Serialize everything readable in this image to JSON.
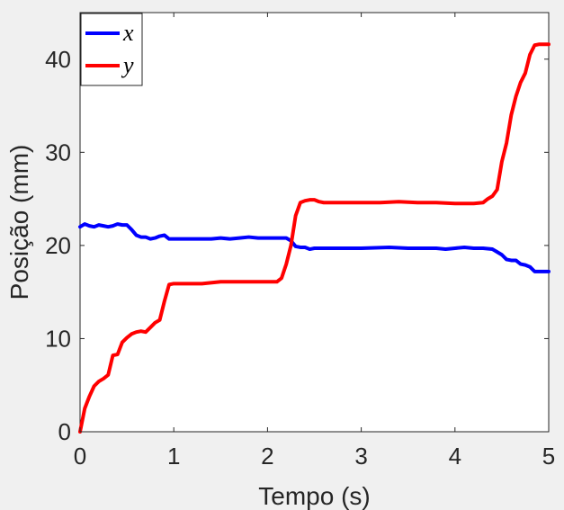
{
  "chart_data": {
    "type": "line",
    "title": "",
    "xlabel": "Tempo (s)",
    "ylabel": "Posição (mm)",
    "xlim": [
      0,
      5
    ],
    "ylim": [
      0,
      45
    ],
    "xticks": [
      "0",
      "1",
      "2",
      "3",
      "4",
      "5"
    ],
    "yticks": [
      "0",
      "10",
      "20",
      "30",
      "40"
    ],
    "grid": false,
    "legend_position": "top-left",
    "series": [
      {
        "name": "x",
        "color": "#0000ff",
        "x": [
          0,
          0.05,
          0.1,
          0.15,
          0.2,
          0.25,
          0.3,
          0.35,
          0.4,
          0.45,
          0.5,
          0.55,
          0.6,
          0.65,
          0.7,
          0.75,
          0.8,
          0.85,
          0.9,
          0.95,
          1.0,
          1.1,
          1.2,
          1.3,
          1.4,
          1.5,
          1.6,
          1.7,
          1.8,
          1.9,
          2.0,
          2.1,
          2.2,
          2.25,
          2.3,
          2.35,
          2.4,
          2.45,
          2.5,
          2.6,
          2.8,
          3.0,
          3.3,
          3.5,
          3.8,
          3.9,
          4.0,
          4.1,
          4.2,
          4.3,
          4.4,
          4.45,
          4.5,
          4.55,
          4.6,
          4.65,
          4.7,
          4.75,
          4.8,
          4.85,
          4.9,
          5.0
        ],
        "y": [
          22.0,
          22.3,
          22.1,
          22.0,
          22.2,
          22.1,
          22.0,
          22.1,
          22.3,
          22.2,
          22.2,
          21.7,
          21.1,
          20.9,
          20.9,
          20.7,
          20.8,
          21.0,
          21.1,
          20.7,
          20.7,
          20.7,
          20.7,
          20.7,
          20.7,
          20.8,
          20.7,
          20.8,
          20.9,
          20.8,
          20.8,
          20.8,
          20.8,
          20.5,
          19.9,
          19.8,
          19.8,
          19.6,
          19.7,
          19.7,
          19.7,
          19.7,
          19.8,
          19.7,
          19.7,
          19.6,
          19.7,
          19.8,
          19.7,
          19.7,
          19.6,
          19.3,
          19.0,
          18.5,
          18.4,
          18.4,
          18.0,
          17.9,
          17.7,
          17.2,
          17.2,
          17.2
        ]
      },
      {
        "name": "y",
        "color": "#ff0000",
        "x": [
          0,
          0.05,
          0.1,
          0.15,
          0.2,
          0.25,
          0.3,
          0.35,
          0.4,
          0.45,
          0.5,
          0.55,
          0.6,
          0.65,
          0.7,
          0.75,
          0.8,
          0.85,
          0.9,
          0.95,
          1.0,
          1.1,
          1.3,
          1.5,
          1.7,
          1.9,
          2.1,
          2.15,
          2.2,
          2.25,
          2.3,
          2.35,
          2.4,
          2.45,
          2.5,
          2.55,
          2.6,
          2.8,
          3.0,
          3.2,
          3.4,
          3.6,
          3.8,
          4.0,
          4.1,
          4.2,
          4.3,
          4.35,
          4.4,
          4.45,
          4.5,
          4.55,
          4.6,
          4.65,
          4.7,
          4.75,
          4.8,
          4.85,
          4.9,
          4.95,
          5.0
        ],
        "y": [
          0,
          2.5,
          3.8,
          4.9,
          5.4,
          5.7,
          6.1,
          8.2,
          8.3,
          9.6,
          10.1,
          10.5,
          10.7,
          10.8,
          10.7,
          11.2,
          11.7,
          12.0,
          14.0,
          15.8,
          15.9,
          15.9,
          15.9,
          16.1,
          16.1,
          16.1,
          16.1,
          16.5,
          18.0,
          20.0,
          23.2,
          24.6,
          24.8,
          24.9,
          24.9,
          24.7,
          24.6,
          24.6,
          24.6,
          24.6,
          24.7,
          24.6,
          24.6,
          24.5,
          24.5,
          24.5,
          24.6,
          25.0,
          25.3,
          26.0,
          29.0,
          31.0,
          34.0,
          36.0,
          37.5,
          38.5,
          40.5,
          41.5,
          41.6,
          41.6,
          41.6
        ]
      }
    ]
  }
}
